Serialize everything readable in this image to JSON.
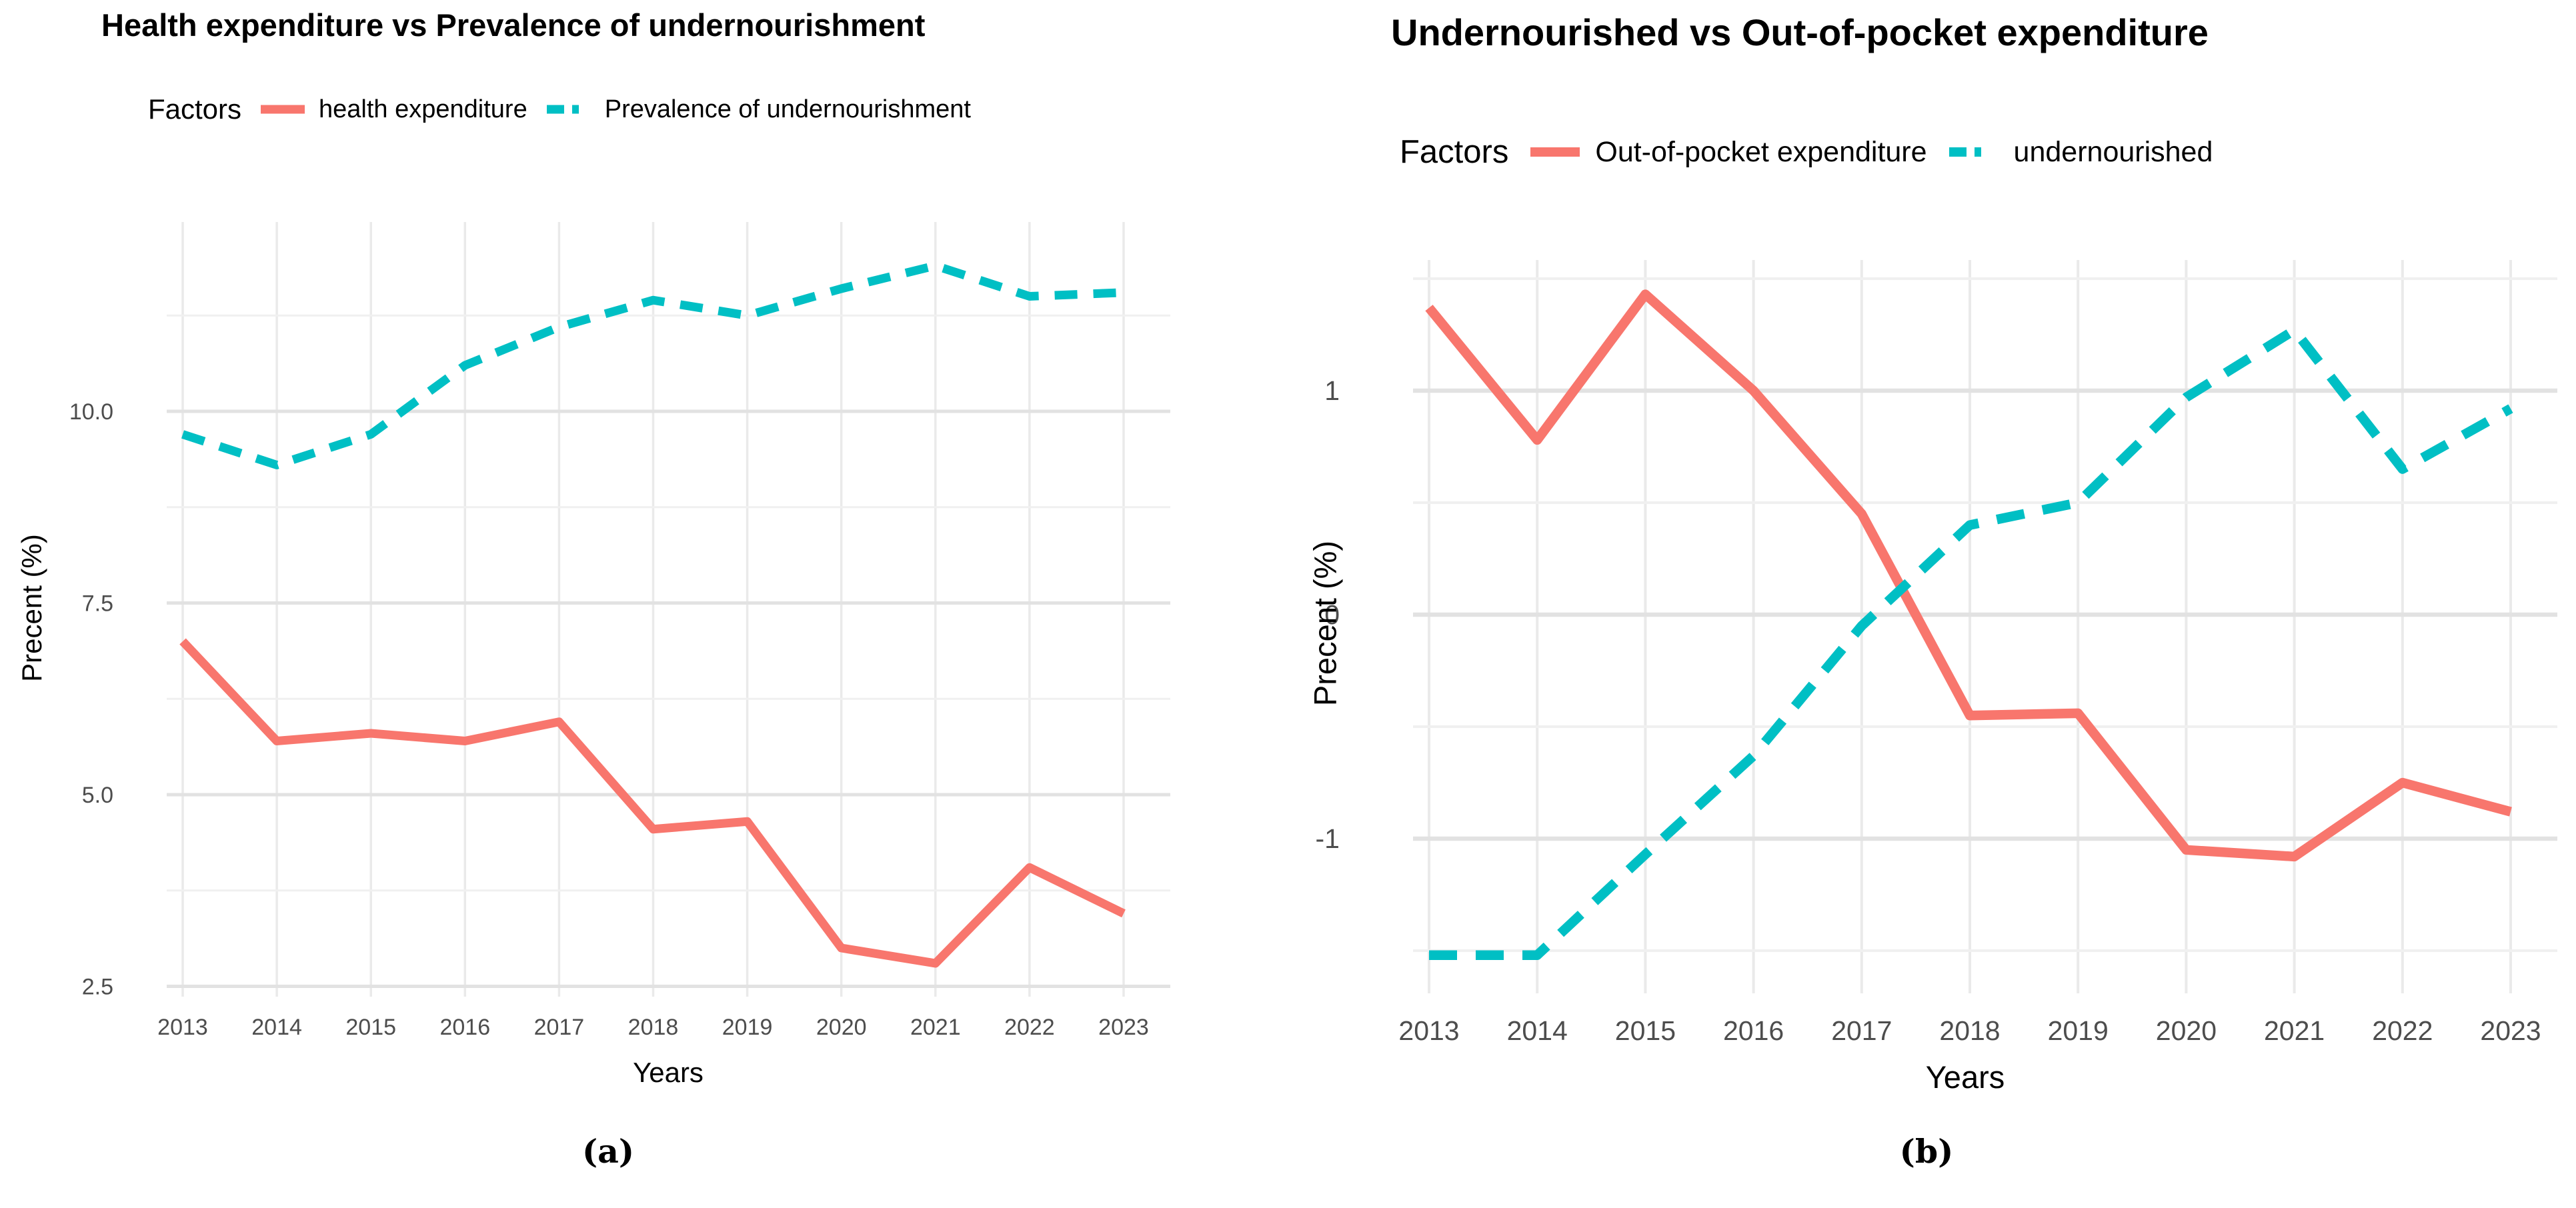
{
  "chart_data": [
    {
      "id": "a",
      "type": "line",
      "title": "Health expenditure vs Prevalence of undernourishment",
      "legend_title": "Factors",
      "legend_position": "top",
      "xlabel": "Years",
      "ylabel": "Precent (%)",
      "caption": "(a)",
      "grid": true,
      "x": [
        "2013",
        "2014",
        "2015",
        "2016",
        "2017",
        "2018",
        "2019",
        "2020",
        "2021",
        "2022",
        "2023"
      ],
      "series": [
        {
          "name": "health expenditure",
          "color": "#F8766D",
          "style": "solid",
          "values": [
            7.0,
            5.7,
            5.8,
            5.7,
            5.95,
            4.55,
            4.65,
            3.0,
            2.8,
            4.05,
            3.45
          ]
        },
        {
          "name": "Prevalence of undernourishment",
          "color": "#00BFC4",
          "style": "dashed",
          "values": [
            9.7,
            9.3,
            9.7,
            10.6,
            11.1,
            11.45,
            11.25,
            11.6,
            11.9,
            11.5,
            11.55
          ]
        }
      ],
      "yticks": [
        {
          "v": 2.5,
          "label": "2.5"
        },
        {
          "v": 5.0,
          "label": "5.0"
        },
        {
          "v": 7.5,
          "label": "7.5"
        },
        {
          "v": 10.0,
          "label": "10.0"
        }
      ],
      "minor_gridlines": [
        3.75,
        6.25,
        8.75,
        11.25
      ],
      "ylim": [
        2.37,
        12.45
      ]
    },
    {
      "id": "b",
      "type": "line",
      "title": "Undernourished vs Out-of-pocket expenditure",
      "legend_title": "Factors",
      "legend_position": "top",
      "xlabel": "Years",
      "ylabel": "Precent (%)",
      "caption": "(b)",
      "grid": true,
      "x": [
        "2013",
        "2014",
        "2015",
        "2016",
        "2017",
        "2018",
        "2019",
        "2020",
        "2021",
        "2022",
        "2023"
      ],
      "series": [
        {
          "name": "Out-of-pocket expenditure",
          "color": "#F8766D",
          "style": "solid",
          "values": [
            1.37,
            0.78,
            1.43,
            1.0,
            0.45,
            -0.45,
            -0.44,
            -1.05,
            -1.08,
            -0.75,
            -0.88
          ]
        },
        {
          "name": "undernourished",
          "color": "#00BFC4",
          "style": "dashed",
          "values": [
            -1.52,
            -1.52,
            -1.07,
            -0.63,
            -0.05,
            0.4,
            0.5,
            0.97,
            1.27,
            0.65,
            0.92
          ]
        }
      ],
      "yticks": [
        {
          "v": -1,
          "label": "-1"
        },
        {
          "v": 0,
          "label": "0"
        },
        {
          "v": 1,
          "label": "1"
        }
      ],
      "minor_gridlines": [
        -1.5,
        -0.5,
        0.5,
        1.5
      ],
      "ylim": [
        -1.69,
        1.58
      ]
    }
  ]
}
